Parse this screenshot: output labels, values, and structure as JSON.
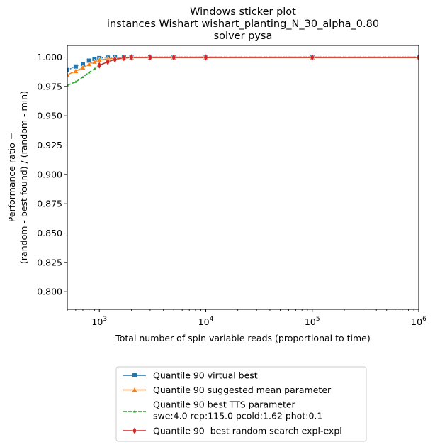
{
  "chart_data": {
    "type": "line",
    "title": [
      "Windows sticker plot",
      "instances Wishart wishart_planting_N_30_alpha_0.80",
      "solver pysa"
    ],
    "xlabel": "Total number of spin variable reads (proportional to time)",
    "ylabel": [
      "Performance ratio =",
      "(random - best found) / (random - min)"
    ],
    "xscale": "log",
    "xlim": [
      500,
      1000000
    ],
    "ylim": [
      0.785,
      1.01
    ],
    "x_ticks": [
      {
        "value": 1000,
        "base": "10",
        "exp": "3"
      },
      {
        "value": 10000,
        "base": "10",
        "exp": "4"
      },
      {
        "value": 100000,
        "base": "10",
        "exp": "5"
      },
      {
        "value": 1000000,
        "base": "10",
        "exp": "6"
      }
    ],
    "y_ticks": [
      {
        "value": 0.8,
        "label": "0.800"
      },
      {
        "value": 0.825,
        "label": "0.825"
      },
      {
        "value": 0.85,
        "label": "0.850"
      },
      {
        "value": 0.875,
        "label": "0.875"
      },
      {
        "value": 0.9,
        "label": "0.900"
      },
      {
        "value": 0.925,
        "label": "0.925"
      },
      {
        "value": 0.95,
        "label": "0.950"
      },
      {
        "value": 0.975,
        "label": "0.975"
      },
      {
        "value": 1.0,
        "label": "1.000"
      }
    ],
    "grid": false,
    "legend_position": "below",
    "series": [
      {
        "name": "Quantile 90 virtual best",
        "color": "#1f77b4",
        "marker": "square",
        "x": [
          500,
          600,
          700,
          800,
          900,
          1000,
          1200,
          1400,
          1700,
          2000,
          3000,
          5000,
          10000,
          100000,
          1000000
        ],
        "y": [
          0.989,
          0.992,
          0.994,
          0.997,
          0.9985,
          0.9992,
          0.9996,
          0.9998,
          0.9999,
          1.0,
          1.0,
          1.0,
          1.0,
          1.0,
          1.0
        ]
      },
      {
        "name": "Quantile 90 suggested mean parameter",
        "color": "#ff7f0e",
        "marker": "triangle",
        "x": [
          500,
          600,
          700,
          800,
          900,
          1000,
          1200,
          1400,
          1700,
          2000,
          3000,
          5000,
          10000,
          100000,
          1000000
        ],
        "y": [
          0.985,
          0.988,
          0.991,
          0.994,
          0.996,
          0.9975,
          0.9985,
          0.999,
          0.9993,
          0.9995,
          0.9995,
          0.9995,
          0.9995,
          0.9995,
          0.9995
        ]
      },
      {
        "name": "Quantile 90 best TTS parameter",
        "name_line2": "swe:4.0 rep:115.0 pcold:1.62 phot:0.1",
        "color": "#2ca02c",
        "marker": "small-triangle",
        "x": [
          500,
          600,
          700,
          800,
          900,
          1000,
          1200,
          1400,
          1700,
          2000,
          3000,
          5000,
          10000,
          100000,
          1000000
        ],
        "y": [
          0.976,
          0.979,
          0.983,
          0.987,
          0.99,
          0.993,
          0.996,
          0.998,
          0.9993,
          0.9998,
          1.0,
          1.0,
          1.0,
          1.0,
          1.0
        ]
      },
      {
        "name": "Quantile 90  best random search expl-expl",
        "color": "#d62728",
        "marker": "diamond",
        "x": [
          1000,
          1200,
          1400,
          1700,
          2000,
          3000,
          5000,
          10000,
          100000,
          1000000
        ],
        "y": [
          0.993,
          0.996,
          0.998,
          0.9993,
          0.9998,
          0.9998,
          0.9998,
          0.9998,
          0.9998,
          0.9998
        ]
      }
    ]
  }
}
